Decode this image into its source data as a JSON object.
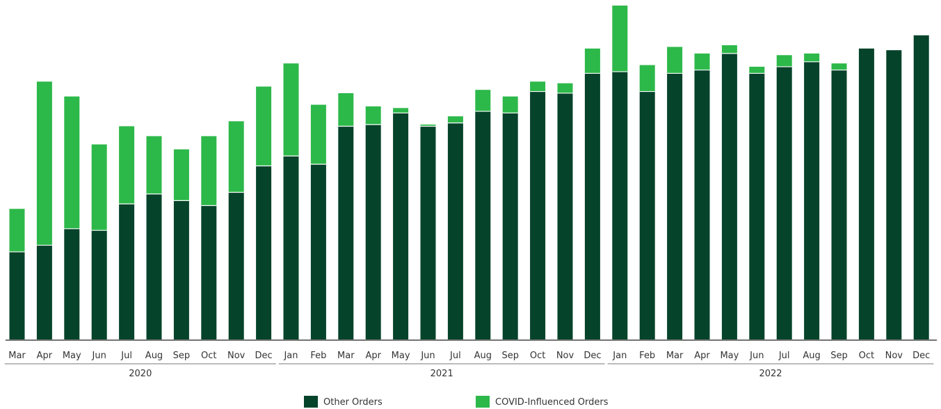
{
  "colors": {
    "other": "#05432a",
    "covid": "#2db84a",
    "axis": "#222222",
    "year_rule": "#777777"
  },
  "chart_data": {
    "type": "bar",
    "stacked": true,
    "categories": [
      "Mar",
      "Apr",
      "May",
      "Jun",
      "Jul",
      "Aug",
      "Sep",
      "Oct",
      "Nov",
      "Dec",
      "Jan",
      "Feb",
      "Mar",
      "Apr",
      "May",
      "Jun",
      "Jul",
      "Aug",
      "Sep",
      "Oct",
      "Nov",
      "Dec",
      "Jan",
      "Feb",
      "Mar",
      "Apr",
      "May",
      "Jun",
      "Jul",
      "Aug",
      "Sep",
      "Oct",
      "Nov",
      "Dec"
    ],
    "groups": [
      {
        "label": "2020",
        "start": 0,
        "end": 9
      },
      {
        "label": "2021",
        "start": 10,
        "end": 21
      },
      {
        "label": "2022",
        "start": 22,
        "end": 33
      }
    ],
    "series": [
      {
        "name": "Other Orders",
        "values": [
          26.5,
          28.5,
          33.5,
          33,
          41,
          44,
          42,
          40.5,
          44.5,
          52.5,
          55.5,
          53,
          64.5,
          65,
          68.5,
          64.5,
          65.5,
          69,
          68.5,
          75,
          74.5,
          80.5,
          81,
          75,
          80.5,
          81.5,
          86.5,
          80.5,
          82.5,
          84,
          81.5,
          88,
          87.5,
          92
        ]
      },
      {
        "name": "COVID-Influenced Orders",
        "values": [
          13,
          49.5,
          40,
          26,
          23.5,
          17.5,
          15.5,
          21,
          21.5,
          24,
          28,
          18,
          10,
          5.5,
          1.5,
          0.5,
          2,
          6.5,
          5,
          3,
          3,
          7.5,
          20,
          8,
          8,
          5,
          2.5,
          2,
          3.5,
          2.5,
          2,
          0,
          0,
          0
        ]
      }
    ],
    "legend_position": "bottom-center",
    "grid": false,
    "xlabel": "",
    "ylabel": "",
    "ylim": [
      0,
      101
    ]
  }
}
